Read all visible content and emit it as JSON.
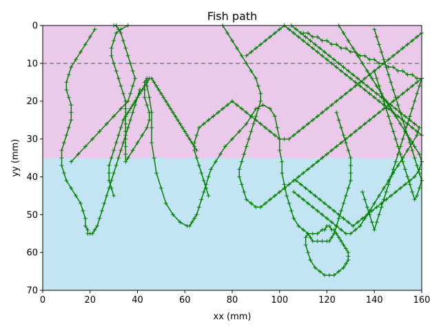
{
  "chart_data": {
    "type": "line",
    "title": "Fish path",
    "xlabel": "xx (mm)",
    "ylabel": "yy (mm)",
    "xlim": [
      0,
      160
    ],
    "ylim": [
      0,
      70
    ],
    "y_inverted": true,
    "grid": false,
    "x_ticks": [
      0,
      20,
      40,
      60,
      80,
      100,
      120,
      140,
      160
    ],
    "y_ticks": [
      0,
      10,
      20,
      30,
      40,
      50,
      60,
      70
    ],
    "x_tick_labels": [
      "0",
      "20",
      "40",
      "60",
      "80",
      "100",
      "120",
      "140",
      "160"
    ],
    "y_tick_labels": [
      "0",
      "10",
      "20",
      "30",
      "40",
      "50",
      "60",
      "70"
    ],
    "regions": [
      {
        "y_from": 0,
        "y_to": 35,
        "color": "#ebc9eb"
      },
      {
        "y_from": 35,
        "y_to": 70,
        "color": "#c3e5f3"
      }
    ],
    "reference_line": {
      "y": 10,
      "color": "#808080",
      "style": "dashed"
    },
    "series": [
      {
        "color": "#007f00",
        "marker": "plus",
        "x": [
          36,
          33,
          31,
          30,
          29,
          29,
          30,
          31,
          32,
          33,
          34,
          35,
          35,
          35,
          35,
          35,
          35,
          35,
          35,
          35,
          36,
          38,
          40,
          42,
          44,
          45,
          45,
          44,
          43,
          43,
          43,
          44,
          44,
          45,
          46,
          46,
          46,
          47,
          48,
          50,
          52,
          55,
          58,
          61,
          62,
          63,
          64,
          65,
          66,
          67,
          68,
          69,
          70,
          71,
          73,
          75,
          77,
          80,
          83,
          86,
          88,
          90,
          93,
          96,
          98,
          99,
          100,
          100,
          101,
          101,
          102,
          103,
          104,
          105,
          106,
          108,
          110,
          112,
          114,
          116,
          118,
          119,
          120,
          121,
          122,
          123,
          124,
          125,
          126,
          127,
          128,
          129,
          129,
          129,
          128,
          127,
          125,
          123,
          121,
          119,
          117,
          115,
          113,
          112,
          111,
          111,
          112,
          113,
          114,
          116,
          118,
          120,
          121,
          122,
          123,
          124,
          125,
          126,
          127,
          128,
          129,
          130,
          130,
          130,
          130,
          129,
          128,
          127,
          126,
          125,
          124
        ],
        "y": [
          0,
          1,
          2,
          4,
          6,
          8,
          10,
          12,
          14,
          16,
          18,
          20,
          22,
          24,
          26,
          28,
          30,
          32,
          34,
          36,
          35,
          33,
          31,
          29,
          27,
          25,
          23,
          21,
          19,
          17,
          15,
          14,
          16,
          19,
          23,
          27,
          31,
          35,
          39,
          43,
          47,
          50,
          52,
          53,
          53,
          52,
          51,
          50,
          48,
          46,
          44,
          42,
          40,
          38,
          36,
          34,
          32,
          30,
          28,
          26,
          24,
          22,
          21,
          22,
          24,
          27,
          30,
          33,
          36,
          39,
          42,
          45,
          47,
          49,
          51,
          53,
          54,
          55,
          55,
          55,
          54,
          54,
          53,
          53,
          54,
          54,
          55,
          56,
          57,
          58,
          59,
          60,
          61,
          62,
          63,
          64,
          65,
          66,
          66,
          66,
          65,
          64,
          62,
          60,
          58,
          56,
          55,
          56,
          57,
          57,
          57,
          57,
          57,
          56,
          55,
          53,
          51,
          49,
          47,
          45,
          43,
          41,
          39,
          37,
          35,
          33,
          31,
          29,
          27,
          25,
          23
        ]
      },
      {
        "color": "#007f00",
        "marker": "plus",
        "x": [
          22,
          20,
          18,
          16,
          14,
          12,
          11,
          10,
          10,
          11,
          12,
          12,
          12,
          11,
          10,
          9,
          8,
          8,
          8,
          9,
          10,
          12,
          14,
          16,
          17,
          18,
          18,
          19,
          19,
          20,
          21,
          22,
          23,
          24,
          25,
          26,
          27,
          28,
          29,
          30,
          31,
          32,
          33,
          34,
          35,
          36,
          37,
          38,
          39,
          40,
          41
        ],
        "y": [
          1,
          3,
          5,
          7,
          9,
          11,
          13,
          15,
          17,
          19,
          21,
          23,
          25,
          27,
          29,
          31,
          33,
          35,
          37,
          39,
          41,
          43,
          45,
          47,
          49,
          51,
          53,
          54,
          55,
          55,
          55,
          54,
          53,
          51,
          49,
          47,
          45,
          43,
          41,
          39,
          37,
          35,
          33,
          31,
          29,
          27,
          25,
          23,
          21,
          19,
          17
        ]
      },
      {
        "color": "#007f00",
        "marker": "plus",
        "x": [
          30,
          29,
          28,
          28,
          28,
          29,
          30,
          31,
          32,
          33,
          34,
          35,
          36,
          37,
          38,
          39,
          40,
          41,
          42,
          43,
          44,
          45,
          46,
          47,
          48,
          49,
          50,
          51,
          52,
          53,
          54,
          55,
          56,
          57,
          58,
          59,
          60,
          61,
          62,
          63,
          64,
          65
        ],
        "y": [
          45,
          43,
          41,
          39,
          37,
          35,
          33,
          31,
          29,
          27,
          25,
          24,
          23,
          22,
          21,
          20,
          19,
          18,
          17,
          16,
          15,
          14,
          14,
          15,
          16,
          17,
          18,
          19,
          20,
          21,
          22,
          23,
          24,
          25,
          26,
          27,
          28,
          29,
          30,
          31,
          32,
          33
        ]
      },
      {
        "color": "#007f00",
        "marker": "plus",
        "x": [
          76,
          78,
          80,
          82,
          84,
          86,
          88,
          90,
          91,
          92,
          92,
          91,
          90,
          89,
          88,
          87,
          86,
          85,
          84,
          83,
          83,
          84,
          85,
          86,
          88,
          90,
          92,
          94,
          96,
          98,
          100,
          102,
          104,
          106,
          108,
          110,
          112,
          114,
          116,
          118,
          120,
          122,
          124,
          126,
          128,
          130,
          132,
          134,
          136,
          138,
          140,
          142,
          144,
          146,
          148,
          150,
          152,
          154,
          156,
          158,
          160
        ],
        "y": [
          0,
          2,
          4,
          6,
          8,
          10,
          12,
          14,
          16,
          18,
          20,
          22,
          24,
          26,
          28,
          30,
          32,
          34,
          36,
          38,
          40,
          42,
          44,
          46,
          47,
          48,
          48,
          47,
          46,
          45,
          44,
          43,
          42,
          41,
          40,
          39,
          38,
          37,
          36,
          35,
          34,
          33,
          32,
          31,
          30,
          29,
          28,
          27,
          26,
          25,
          24,
          23,
          22,
          21,
          20,
          19,
          18,
          17,
          16,
          15,
          14
        ]
      },
      {
        "color": "#007f00",
        "marker": "plus",
        "x": [
          160,
          158,
          156,
          154,
          152,
          150,
          148,
          146,
          144,
          142,
          140,
          138,
          136,
          134,
          132,
          130,
          128,
          126,
          124,
          122,
          120,
          118,
          116,
          114,
          112,
          110,
          108,
          106,
          104,
          102,
          100,
          98,
          96,
          94,
          92,
          90,
          88,
          86,
          84,
          82,
          80,
          78,
          76,
          74,
          72,
          70,
          68,
          66,
          65,
          64,
          64,
          65,
          66,
          67,
          68,
          69,
          70
        ],
        "y": [
          2,
          3,
          4,
          5,
          6,
          7,
          8,
          9,
          10,
          11,
          12,
          13,
          14,
          15,
          16,
          17,
          18,
          19,
          20,
          21,
          22,
          23,
          24,
          25,
          26,
          27,
          28,
          29,
          30,
          30,
          30,
          29,
          28,
          27,
          26,
          25,
          24,
          23,
          22,
          21,
          20,
          21,
          22,
          23,
          24,
          25,
          26,
          27,
          29,
          31,
          33,
          35,
          37,
          39,
          41,
          43,
          45
        ]
      },
      {
        "color": "#007f00",
        "marker": "plus",
        "x": [
          105,
          107,
          109,
          111,
          113,
          115,
          117,
          119,
          121,
          123,
          125,
          127,
          129,
          131,
          133,
          135,
          137,
          139,
          141,
          143,
          145,
          147,
          149,
          151,
          153,
          155,
          157,
          159,
          158,
          156,
          154,
          152,
          150,
          148,
          146,
          144,
          142,
          140,
          138,
          136,
          134,
          132,
          130,
          128,
          126,
          124,
          122,
          120,
          118,
          116,
          114,
          112,
          110,
          108,
          106
        ],
        "y": [
          0,
          1,
          2,
          3,
          4,
          5,
          6,
          7,
          8,
          9,
          10,
          11,
          12,
          13,
          14,
          15,
          16,
          17,
          18,
          19,
          20,
          21,
          22,
          23,
          24,
          25,
          26,
          27,
          29,
          31,
          33,
          35,
          37,
          39,
          41,
          43,
          45,
          47,
          49,
          51,
          53,
          54,
          55,
          55,
          54,
          53,
          52,
          51,
          50,
          49,
          48,
          47,
          46,
          45,
          44
        ]
      },
      {
        "color": "#007f00",
        "marker": "plus",
        "x": [
          110,
          112,
          114,
          116,
          118,
          120,
          122,
          124,
          126,
          128,
          130,
          132,
          134,
          136,
          138,
          140,
          142,
          144,
          146,
          148,
          150,
          152,
          154,
          156,
          158,
          160,
          159,
          158,
          157,
          156,
          155,
          154,
          153,
          152,
          151,
          150,
          149,
          148,
          147,
          146,
          145,
          144,
          143,
          142,
          141,
          140,
          139,
          138,
          137,
          136,
          135
        ],
        "y": [
          2,
          2,
          3,
          3,
          4,
          4,
          5,
          5,
          6,
          6,
          7,
          7,
          8,
          8,
          9,
          9,
          10,
          10,
          11,
          11,
          12,
          12,
          13,
          13,
          14,
          14,
          16,
          18,
          20,
          22,
          24,
          26,
          28,
          30,
          32,
          34,
          36,
          38,
          40,
          42,
          44,
          46,
          48,
          50,
          52,
          54,
          52,
          50,
          48,
          46,
          44
        ]
      },
      {
        "color": "#007f00",
        "marker": "plus",
        "x": [
          125,
          127,
          129,
          131,
          133,
          135,
          137,
          139,
          141,
          143,
          145,
          147,
          149,
          151,
          153,
          155,
          157,
          159,
          160,
          159,
          157,
          155,
          153,
          151,
          149,
          147,
          145,
          143,
          141,
          139,
          137,
          135,
          133,
          131,
          129,
          127,
          125,
          123,
          121,
          119,
          117,
          115,
          113,
          111,
          109,
          107
        ],
        "y": [
          0,
          2,
          4,
          6,
          8,
          10,
          12,
          14,
          16,
          18,
          20,
          22,
          24,
          26,
          28,
          30,
          32,
          34,
          36,
          38,
          40,
          41,
          42,
          43,
          44,
          45,
          46,
          47,
          48,
          49,
          50,
          51,
          52,
          53,
          52,
          51,
          50,
          49,
          48,
          47,
          46,
          45,
          44,
          43,
          42,
          41
        ]
      },
      {
        "color": "#007f00",
        "marker": "plus",
        "x": [
          86,
          88,
          90,
          92,
          94,
          96,
          98,
          100,
          102,
          104,
          106,
          108,
          110,
          112,
          114,
          116,
          118,
          120,
          122,
          124,
          126,
          128,
          130,
          132,
          134,
          136,
          138,
          140,
          142,
          144,
          146,
          148,
          150,
          152,
          154,
          156,
          158,
          160
        ],
        "y": [
          8,
          7,
          6,
          5,
          4,
          3,
          2,
          1,
          0,
          1,
          2,
          3,
          4,
          5,
          6,
          7,
          8,
          9,
          10,
          11,
          12,
          13,
          14,
          15,
          16,
          17,
          18,
          19,
          20,
          21,
          22,
          23,
          24,
          25,
          26,
          27,
          28,
          29
        ]
      },
      {
        "color": "#007f00",
        "marker": "plus",
        "x": [
          140,
          141,
          142,
          143,
          144,
          145,
          146,
          147,
          148,
          149,
          150,
          151,
          152,
          153,
          154,
          155,
          156,
          157,
          158,
          159,
          160,
          159,
          158,
          157,
          156,
          155,
          154,
          153,
          152,
          151,
          150,
          149,
          148,
          147,
          146,
          145,
          144,
          143,
          142,
          141,
          140
        ],
        "y": [
          1,
          3,
          5,
          7,
          9,
          11,
          13,
          15,
          17,
          19,
          21,
          23,
          25,
          27,
          29,
          31,
          33,
          35,
          37,
          39,
          41,
          43,
          45,
          46,
          44,
          42,
          40,
          38,
          36,
          34,
          32,
          30,
          28,
          26,
          24,
          22,
          20,
          18,
          16,
          14,
          12
        ]
      },
      {
        "color": "#007f00",
        "marker": "plus",
        "x": [
          12,
          15,
          18,
          21,
          24,
          27,
          30,
          33,
          36,
          37,
          38,
          39,
          38,
          37,
          36,
          35,
          34,
          33,
          32,
          31,
          30
        ],
        "y": [
          36,
          34,
          32,
          30,
          28,
          26,
          24,
          22,
          20,
          18,
          16,
          14,
          12,
          10,
          8,
          6,
          4,
          2,
          1,
          0,
          0
        ]
      }
    ]
  }
}
